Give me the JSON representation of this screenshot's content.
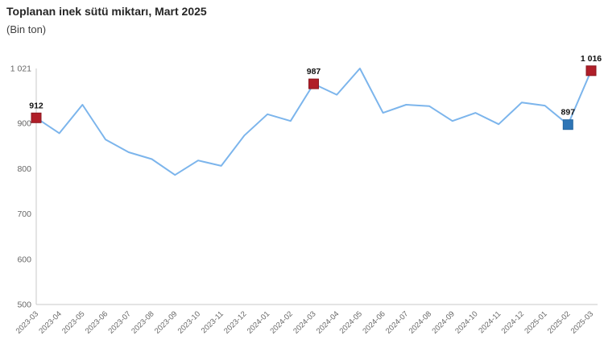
{
  "chart": {
    "title": "Toplanan inek sütü miktarı, Mart 2025",
    "subtitle": "(Bin ton)"
  },
  "chart_data": {
    "type": "line",
    "title": "Toplanan inek sütü miktarı, Mart 2025",
    "subtitle": "(Bin ton)",
    "xlabel": "",
    "ylabel": "",
    "x": [
      "2023-03",
      "2023-04",
      "2023-05",
      "2023-06",
      "2023-07",
      "2023-08",
      "2023-09",
      "2023-10",
      "2023-11",
      "2023-12",
      "2024-01",
      "2024-02",
      "2024-03",
      "2024-04",
      "2024-05",
      "2024-06",
      "2024-07",
      "2024-08",
      "2024-09",
      "2024-10",
      "2024-11",
      "2024-12",
      "2025-01",
      "2025-02",
      "2025-03"
    ],
    "values": [
      912,
      878,
      941,
      864,
      836,
      821,
      786,
      818,
      806,
      873,
      920,
      905,
      987,
      963,
      1021,
      923,
      941,
      938,
      905,
      923,
      898,
      946,
      939,
      897,
      1016
    ],
    "ylim": [
      500,
      1021
    ],
    "y_ticks": [
      500,
      600,
      700,
      800,
      900,
      1021
    ],
    "y_tick_labels": [
      "500",
      "600",
      "700",
      "800",
      "900",
      "1 021"
    ],
    "grid": false,
    "legend": false,
    "line_color": "#7cb5ec",
    "axis_color": "#c9c9c9",
    "tick_color": "#666666",
    "value_label_color": "#111111",
    "annotated_points": [
      {
        "x": "2023-03",
        "value": 912,
        "label": "912",
        "color": "#b01e28",
        "border": "#8a171f"
      },
      {
        "x": "2024-03",
        "value": 987,
        "label": "987",
        "color": "#b01e28",
        "border": "#8a171f"
      },
      {
        "x": "2025-02",
        "value": 897,
        "label": "897",
        "color": "#2e75b6",
        "border": "#24659f"
      },
      {
        "x": "2025-03",
        "value": 1016,
        "label": "1 016",
        "color": "#b01e28",
        "border": "#8a171f"
      }
    ]
  }
}
